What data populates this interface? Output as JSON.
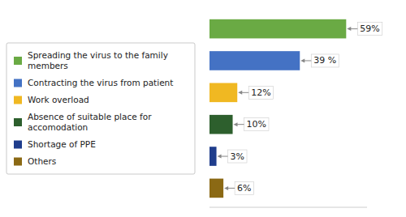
{
  "chart_data": {
    "type": "bar",
    "orientation": "horizontal",
    "categories": [
      "Spreading the virus to the family\nmembers",
      "Contracting the virus from patient",
      "Work overload",
      "Absence of suitable place for\naccomodation",
      "Shortage of PPE",
      "Others"
    ],
    "values": [
      59,
      39,
      12,
      10,
      3,
      6
    ],
    "value_labels": [
      "59%",
      "39 %",
      "12%",
      "10%",
      "3%",
      "6%"
    ],
    "colors": [
      "#6aaa44",
      "#4472c4",
      "#f0b822",
      "#2d5f2d",
      "#1f3d8c",
      "#8b6914"
    ],
    "xlim": [
      0,
      68
    ],
    "data_labels": true,
    "tick_labels": false,
    "grid": false,
    "legend": "left"
  }
}
